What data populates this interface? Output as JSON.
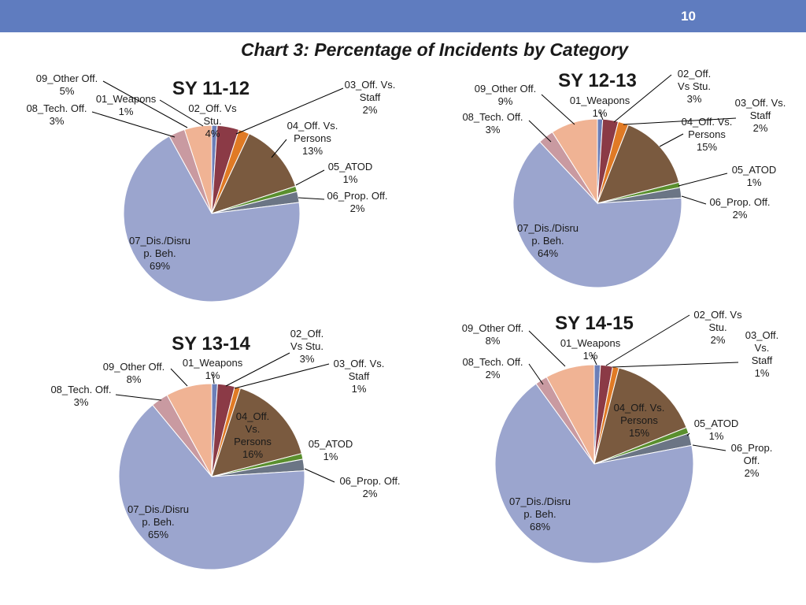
{
  "header": {
    "page_number": "10",
    "bar_color": "#5f7cbf"
  },
  "slide_title": "Chart 3: Percentage of Incidents by Category",
  "colors": [
    "#6c7fb8",
    "#8b3a46",
    "#e07a25",
    "#7a5a3f",
    "#5a8f2e",
    "#6b7585",
    "#9ba5ce",
    "#c99aa1",
    "#f0b394"
  ],
  "chart_data": [
    {
      "type": "pie",
      "title": "SY 11-12",
      "categories": [
        "01_Weapons",
        "02_Off. Vs Stu.",
        "03_Off. Vs. Staff",
        "04_Off. Vs. Persons",
        "05_ATOD",
        "06_Prop. Off.",
        "07_Dis./Disrup. Beh.",
        "08_Tech. Off.",
        "09_Other Off."
      ],
      "values": [
        1,
        4,
        2,
        13,
        1,
        2,
        69,
        3,
        5
      ],
      "labels": [
        {
          "lines": [
            "01_Weapons",
            "1%"
          ]
        },
        {
          "lines": [
            "02_Off. Vs",
            "Stu.",
            "4%"
          ]
        },
        {
          "lines": [
            "03_Off. Vs.",
            "Staff",
            "2%"
          ]
        },
        {
          "lines": [
            "04_Off. Vs.",
            "Persons",
            "13%"
          ]
        },
        {
          "lines": [
            "05_ATOD",
            "1%"
          ]
        },
        {
          "lines": [
            "06_Prop. Off.",
            "2%"
          ]
        },
        {
          "lines": [
            "07_Dis./Disru",
            "p. Beh.",
            "69%"
          ]
        },
        {
          "lines": [
            "08_Tech. Off.",
            "3%"
          ]
        },
        {
          "lines": [
            "09_Other Off.",
            "5%"
          ]
        }
      ]
    },
    {
      "type": "pie",
      "title": "SY 12-13",
      "categories": [
        "01_Weapons",
        "02_Off. Vs Stu.",
        "03_Off. Vs. Staff",
        "04_Off. Vs. Persons",
        "05_ATOD",
        "06_Prop. Off.",
        "07_Dis./Disrup. Beh.",
        "08_Tech. Off.",
        "09_Other Off."
      ],
      "values": [
        1,
        3,
        2,
        15,
        1,
        2,
        64,
        3,
        9
      ],
      "labels": [
        {
          "lines": [
            "01_Weapons",
            "1%"
          ]
        },
        {
          "lines": [
            "02_Off.",
            "Vs Stu.",
            "3%"
          ]
        },
        {
          "lines": [
            "03_Off. Vs.",
            "Staff",
            "2%"
          ]
        },
        {
          "lines": [
            "04_Off. Vs.",
            "Persons",
            "15%"
          ]
        },
        {
          "lines": [
            "05_ATOD",
            "1%"
          ]
        },
        {
          "lines": [
            "06_Prop. Off.",
            "2%"
          ]
        },
        {
          "lines": [
            "07_Dis./Disru",
            "p. Beh.",
            "64%"
          ]
        },
        {
          "lines": [
            "08_Tech. Off.",
            "3%"
          ]
        },
        {
          "lines": [
            "09_Other Off.",
            "9%"
          ]
        }
      ]
    },
    {
      "type": "pie",
      "title": "SY 13-14",
      "categories": [
        "01_Weapons",
        "02_Off. Vs Stu.",
        "03_Off. Vs. Staff",
        "04_Off. Vs. Persons",
        "05_ATOD",
        "06_Prop. Off.",
        "07_Dis./Disrup. Beh.",
        "08_Tech. Off.",
        "09_Other Off."
      ],
      "values": [
        1,
        3,
        1,
        16,
        1,
        2,
        65,
        3,
        8
      ],
      "labels": [
        {
          "lines": [
            "01_Weapons",
            "1%"
          ]
        },
        {
          "lines": [
            "02_Off.",
            "Vs Stu.",
            "3%"
          ]
        },
        {
          "lines": [
            "03_Off. Vs.",
            "Staff",
            "1%"
          ]
        },
        {
          "lines": [
            "04_Off.",
            "Vs.",
            "Persons",
            "16%"
          ]
        },
        {
          "lines": [
            "05_ATOD",
            "1%"
          ]
        },
        {
          "lines": [
            "06_Prop. Off.",
            "2%"
          ]
        },
        {
          "lines": [
            "07_Dis./Disru",
            "p. Beh.",
            "65%"
          ]
        },
        {
          "lines": [
            "08_Tech. Off.",
            "3%"
          ]
        },
        {
          "lines": [
            "09_Other Off.",
            "8%"
          ]
        }
      ]
    },
    {
      "type": "pie",
      "title": "SY 14-15",
      "categories": [
        "01_Weapons",
        "02_Off. Vs Stu.",
        "03_Off. Vs. Staff",
        "04_Off. Vs. Persons",
        "05_ATOD",
        "06_Prop. Off.",
        "07_Dis./Disrup. Beh.",
        "08_Tech. Off.",
        "09_Other Off."
      ],
      "values": [
        1,
        2,
        1,
        15,
        1,
        2,
        68,
        2,
        8
      ],
      "labels": [
        {
          "lines": [
            "01_Weapons",
            "1%"
          ]
        },
        {
          "lines": [
            "02_Off. Vs",
            "Stu.",
            "2%"
          ]
        },
        {
          "lines": [
            "03_Off.",
            "Vs.",
            "Staff",
            "1%"
          ]
        },
        {
          "lines": [
            "04_Off. Vs.",
            "Persons",
            "15%"
          ]
        },
        {
          "lines": [
            "05_ATOD",
            "1%"
          ]
        },
        {
          "lines": [
            "06_Prop.",
            "Off.",
            "2%"
          ]
        },
        {
          "lines": [
            "07_Dis./Disru",
            "p. Beh.",
            "68%"
          ]
        },
        {
          "lines": [
            "08_Tech. Off.",
            "2%"
          ]
        },
        {
          "lines": [
            "09_Other Off.",
            "8%"
          ]
        }
      ]
    }
  ]
}
